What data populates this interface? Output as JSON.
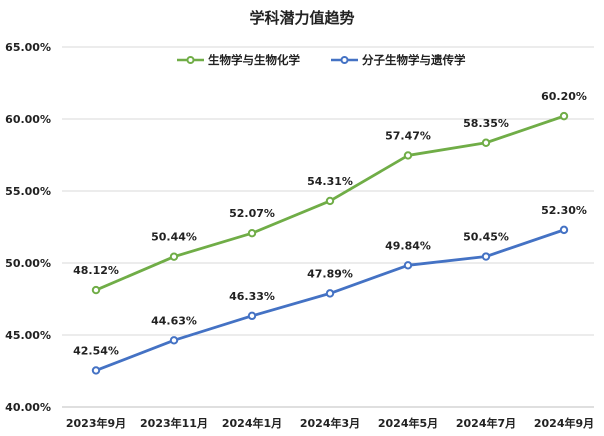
{
  "chart_data": {
    "type": "line",
    "title": "学科潜力值趋势",
    "xlabel": "",
    "ylabel": "",
    "categories": [
      "2023年9月",
      "2023年11月",
      "2024年1月",
      "2024年3月",
      "2024年5月",
      "2024年7月",
      "2024年9月"
    ],
    "ylim": [
      40,
      65
    ],
    "yticks": [
      "40.00%",
      "45.00%",
      "50.00%",
      "55.00%",
      "60.00%",
      "65.00%"
    ],
    "ytick_values": [
      40,
      45,
      50,
      55,
      60,
      65
    ],
    "grid": "horizontal",
    "legend_position": "top-center",
    "series": [
      {
        "name": "生物学与生物化学",
        "color": "#70ad47",
        "values": [
          48.12,
          50.44,
          52.07,
          54.31,
          57.47,
          58.35,
          60.2
        ],
        "labels": [
          "48.12%",
          "50.44%",
          "52.07%",
          "54.31%",
          "57.47%",
          "58.35%",
          "60.20%"
        ]
      },
      {
        "name": "分子生物学与遗传学",
        "color": "#4472c4",
        "values": [
          42.54,
          44.63,
          46.33,
          47.89,
          49.84,
          50.45,
          52.3
        ],
        "labels": [
          "42.54%",
          "44.63%",
          "46.33%",
          "47.89%",
          "49.84%",
          "50.45%",
          "52.30%"
        ]
      }
    ]
  }
}
